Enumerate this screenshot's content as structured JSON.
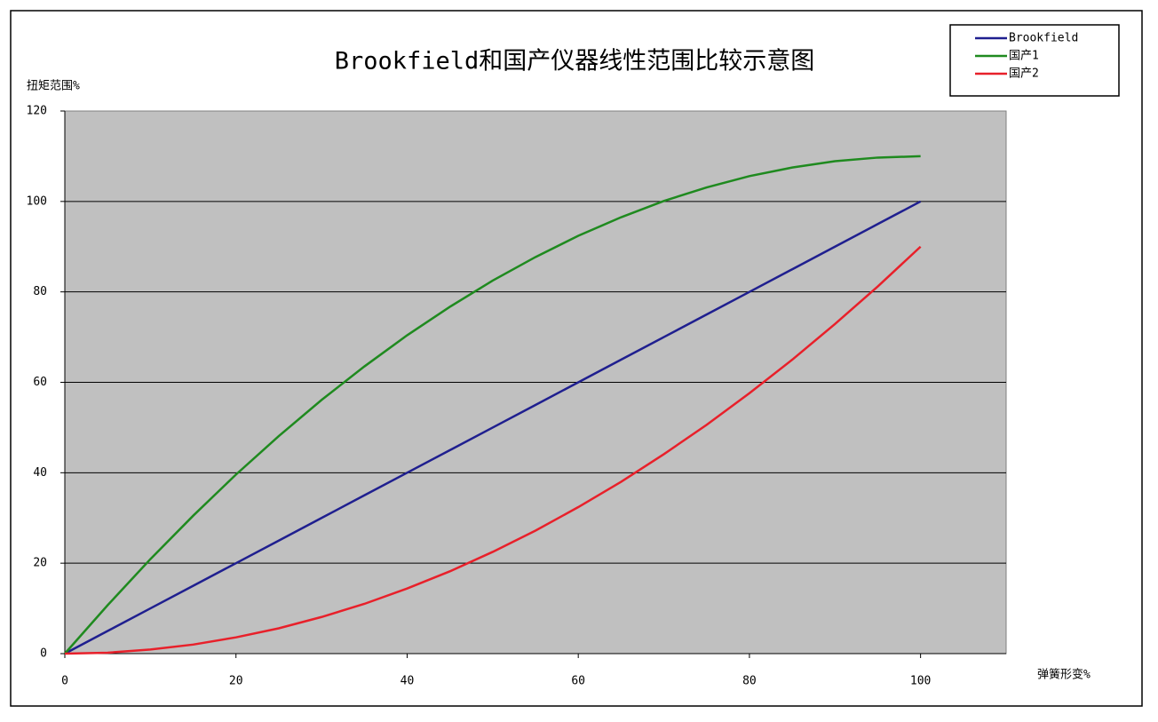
{
  "chart_data": {
    "type": "line",
    "title": "Brookfield和国产仪器线性范围比较示意图",
    "y_label": "扭矩范围%",
    "x_label": "弹簧形变%",
    "x": [
      0,
      5,
      10,
      15,
      20,
      25,
      30,
      35,
      40,
      45,
      50,
      55,
      60,
      65,
      70,
      75,
      80,
      85,
      90,
      95,
      100
    ],
    "series": [
      {
        "name": "Brookfield",
        "color": "#1f1f8f",
        "values": [
          0,
          5,
          10,
          15,
          20,
          25,
          30,
          35,
          40,
          45,
          50,
          55,
          60,
          65,
          70,
          75,
          80,
          85,
          90,
          95,
          100
        ]
      },
      {
        "name": "国产1",
        "color": "#1f8a1f",
        "values": [
          0,
          10.7,
          20.9,
          30.5,
          39.6,
          48.1,
          56.1,
          63.5,
          70.4,
          76.7,
          82.5,
          87.7,
          92.4,
          96.5,
          100.1,
          103.1,
          105.6,
          107.5,
          108.9,
          109.7,
          110
        ]
      },
      {
        "name": "国产2",
        "color": "#e8202a",
        "values": [
          0,
          0.2,
          0.9,
          2.0,
          3.6,
          5.6,
          8.1,
          11.0,
          14.4,
          18.2,
          22.5,
          27.2,
          32.4,
          38.0,
          44.1,
          50.6,
          57.6,
          65.0,
          72.9,
          81.2,
          90
        ]
      }
    ],
    "xlim": [
      0,
      110
    ],
    "xticks": [
      0,
      20,
      40,
      60,
      80,
      100
    ],
    "ylim": [
      0,
      120
    ],
    "yticks": [
      0,
      20,
      40,
      60,
      80,
      100,
      120
    ],
    "grid": true,
    "legend": "top-right"
  }
}
